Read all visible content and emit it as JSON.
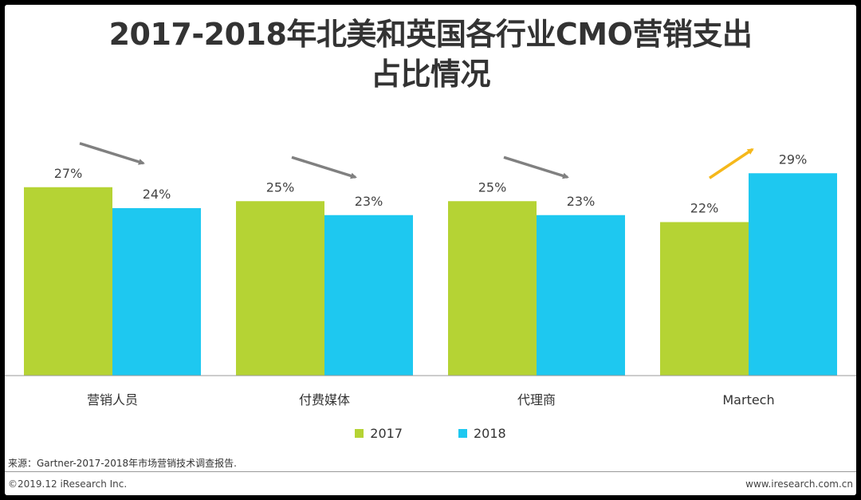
{
  "title_line1": "2017-2018年北美和英国各行业CMO营销支出",
  "title_line2": "占比情况",
  "chart_data": {
    "type": "bar",
    "title": "2017-2018年北美和英国各行业CMO营销支出占比情况",
    "categories": [
      "营销人员",
      "付费媒体",
      "代理商",
      "Martech"
    ],
    "series": [
      {
        "name": "2017",
        "values": [
          27,
          25,
          25,
          22
        ],
        "color": "#b5d334"
      },
      {
        "name": "2018",
        "values": [
          24,
          23,
          23,
          29
        ],
        "color": "#1ec8f0"
      }
    ],
    "value_suffix": "%",
    "ylim": [
      0,
      30
    ],
    "trend": [
      "down",
      "down",
      "down",
      "up"
    ],
    "trend_colors": {
      "down": "#808080",
      "up": "#f5b81b"
    },
    "legend_position": "bottom"
  },
  "source": "来源：Gartner-2017-2018年市场营销技术调查报告.",
  "footer": {
    "copyright": "©2019.12 iResearch Inc.",
    "website": "www.iresearch.com.cn"
  }
}
